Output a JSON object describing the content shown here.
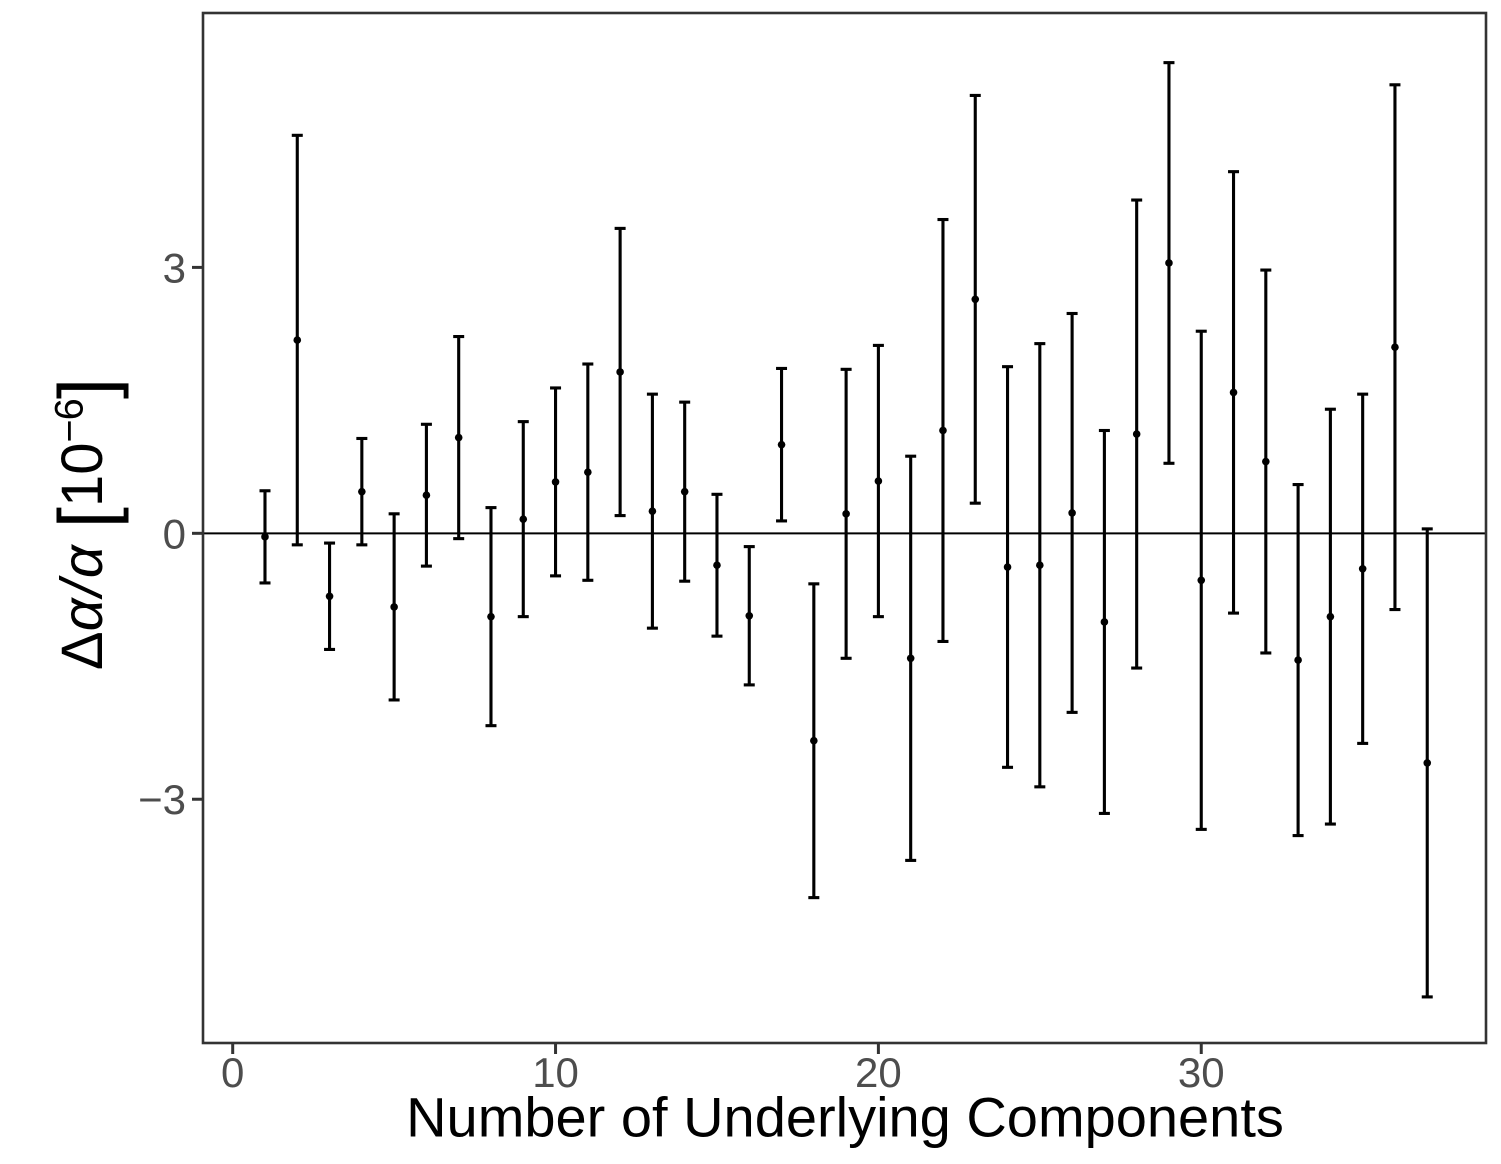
{
  "chart_data": {
    "type": "scatter",
    "title": "",
    "xlabel": "Number of Underlying Components",
    "ylabel": {
      "delta": "Δ",
      "alpha_numerator": "α",
      "slash": "/",
      "alpha_denominator": "α",
      "bracket_open": "[",
      "base": "10",
      "exponent": "−6",
      "bracket_close": "]"
    },
    "x": [
      1,
      2,
      3,
      4,
      5,
      6,
      7,
      8,
      9,
      10,
      11,
      12,
      13,
      14,
      15,
      16,
      17,
      18,
      19,
      20,
      21,
      22,
      23,
      24,
      25,
      26,
      27,
      28,
      29,
      30,
      31,
      32,
      33,
      34,
      35,
      36,
      37
    ],
    "series": [
      {
        "name": "delta-alpha-over-alpha",
        "y": [
          -0.04,
          2.18,
          -0.71,
          0.47,
          -0.83,
          0.43,
          1.08,
          -0.94,
          0.16,
          0.58,
          0.69,
          1.82,
          0.25,
          0.47,
          -0.36,
          -0.93,
          1.0,
          -2.34,
          0.22,
          0.59,
          -1.41,
          1.16,
          2.64,
          -0.38,
          -0.36,
          0.23,
          -1.0,
          1.12,
          3.05,
          -0.53,
          1.59,
          0.81,
          -1.43,
          -0.94,
          -0.4,
          2.1,
          -2.59
        ],
        "yerr": [
          0.52,
          2.31,
          0.6,
          0.6,
          1.05,
          0.8,
          1.14,
          1.23,
          1.1,
          1.06,
          1.22,
          1.62,
          1.32,
          1.01,
          0.8,
          0.78,
          0.86,
          1.77,
          1.63,
          1.53,
          2.28,
          2.38,
          2.3,
          2.26,
          2.5,
          2.25,
          2.16,
          2.64,
          2.26,
          2.81,
          2.49,
          2.16,
          1.98,
          2.34,
          1.97,
          2.96,
          2.64
        ]
      }
    ],
    "x_ticks": [
      {
        "value": 0,
        "label": "0"
      },
      {
        "value": 10,
        "label": "10"
      },
      {
        "value": 20,
        "label": "20"
      },
      {
        "value": 30,
        "label": "30"
      }
    ],
    "y_ticks": [
      {
        "value": 3,
        "label": "3"
      },
      {
        "value": 0,
        "label": "0"
      },
      {
        "value": -3,
        "label": "−3"
      }
    ],
    "xlim": [
      -0.92,
      38.82
    ],
    "ylim": [
      -5.75,
      5.87
    ],
    "grid": false,
    "zero_line": true,
    "legend": "none",
    "colors": {
      "points": "#000000",
      "error_bars": "#000000",
      "zero_line": "#000000",
      "panel_border": "#333333",
      "ticks": "#333333",
      "tick_labels": "#4d4d4d",
      "axis_titles": "#000000",
      "background": "#ffffff"
    }
  }
}
